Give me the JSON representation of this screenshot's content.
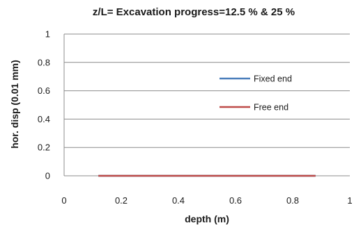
{
  "chart_data": {
    "type": "line",
    "title": "z/L= Excavation progress=12.5 % & 25 %",
    "xlabel": "depth (m)",
    "ylabel": "hor. disp (0.01 mm)",
    "xlim": [
      0,
      1
    ],
    "ylim": [
      0,
      1
    ],
    "xticks": [
      0,
      0.2,
      0.4,
      0.6,
      0.8,
      1
    ],
    "xtick_labels": [
      "0",
      "0.2",
      "0.4",
      "0.6",
      "0.8",
      "1"
    ],
    "yticks": [
      0,
      0.2,
      0.4,
      0.6,
      0.8,
      1
    ],
    "ytick_labels": [
      "0",
      "0.2",
      "0.4",
      "0.6",
      "0.8",
      "1"
    ],
    "grid": "horizontal",
    "legend_position": "right",
    "series": [
      {
        "name": "Fixed end",
        "color": "#4a7ebb",
        "x": [
          0.12,
          0.88
        ],
        "y": [
          0,
          0
        ]
      },
      {
        "name": "Free end",
        "color": "#be4b48",
        "x": [
          0.12,
          0.88
        ],
        "y": [
          0,
          0
        ]
      }
    ]
  }
}
